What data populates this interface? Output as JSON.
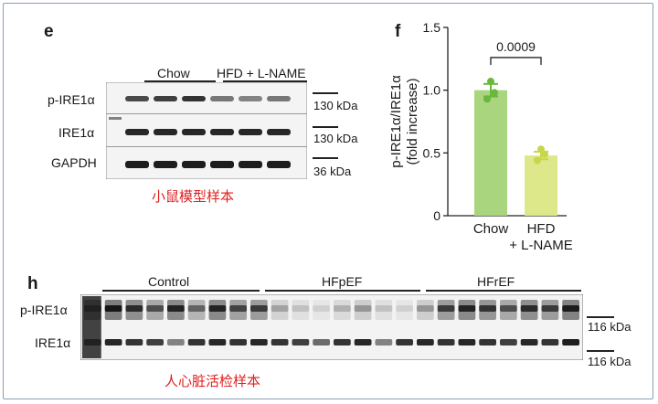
{
  "panel_e": {
    "letter": "e",
    "group_label_1": "Chow",
    "group_label_2": "HFD + L-NAME",
    "row_labels": [
      "p-IRE1α",
      "IRE1α",
      "GAPDH"
    ],
    "kda_labels": [
      "130 kDa",
      "130 kDa",
      "36 kDa"
    ],
    "caption_cn": "小鼠模型样本"
  },
  "panel_f": {
    "letter": "f"
  },
  "chart_data": {
    "type": "bar",
    "categories": [
      "Chow",
      "HFD + L-NAME"
    ],
    "category_lines": [
      [
        "Chow"
      ],
      [
        "HFD",
        "+ L-NAME"
      ]
    ],
    "values": [
      1.0,
      0.48
    ],
    "errors": [
      0.05,
      0.03
    ],
    "points": [
      [
        0.93,
        0.98,
        1.07
      ],
      [
        0.44,
        0.49,
        0.53
      ]
    ],
    "ylabel_lines": [
      "p-IRE1α/IRE1α",
      "(fold increase)"
    ],
    "yticks": [
      "0",
      "0.5",
      "1.0",
      "1.5"
    ],
    "ylim": [
      0,
      1.5
    ],
    "significance": "0.0009",
    "colors": [
      "#a9d57e",
      "#dde88a"
    ],
    "point_colors": [
      "#6ab73d",
      "#c8d64a"
    ]
  },
  "panel_h": {
    "letter": "h",
    "group_labels": [
      "Control",
      "HFpEF",
      "HFrEF"
    ],
    "row_labels": [
      "p-IRE1α",
      "IRE1α"
    ],
    "kda_labels": [
      "116 kDa",
      "116 kDa"
    ],
    "caption_cn": "人心脏活检样本"
  }
}
